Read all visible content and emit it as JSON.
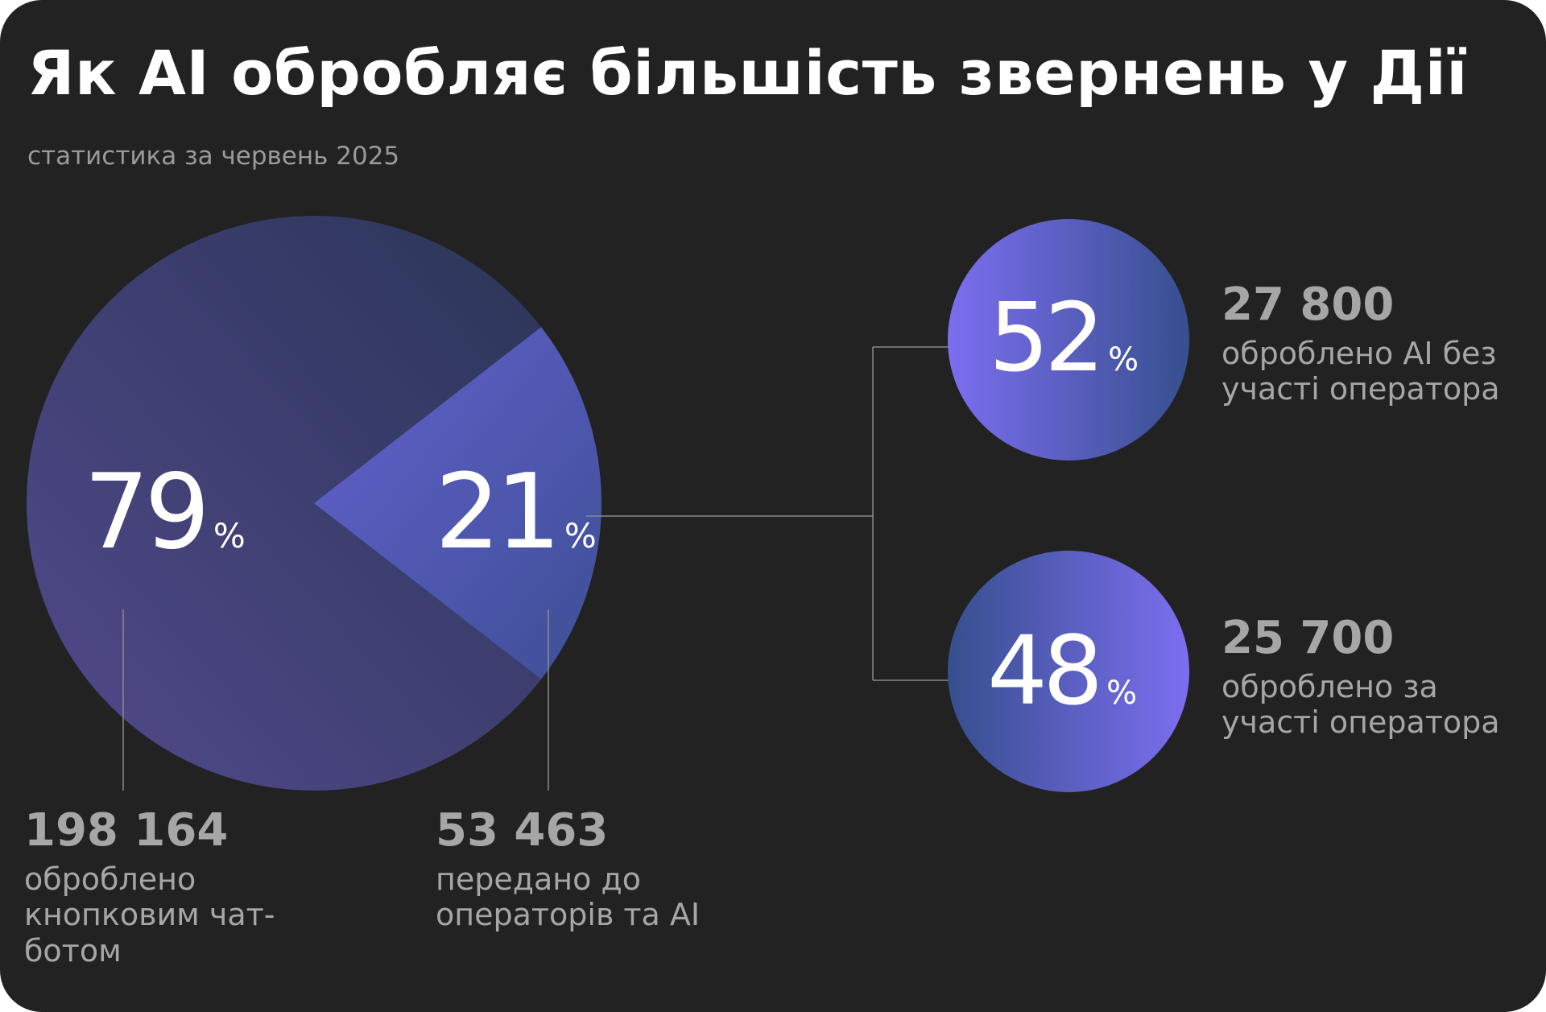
{
  "title": "Як AI обробляє більшість звернень у Дії",
  "subtitle": "статистика за червень 2025",
  "colors": {
    "background": "#222222",
    "pie_large_start": "#524a8c",
    "pie_large_end": "#2b3558",
    "pie_small_start": "#6461cf",
    "pie_small_end": "#3d4f94",
    "circle_light": "#7c6ef0",
    "circle_dark": "#364f8e",
    "connector": "#8a8a8a",
    "text_muted": "#a6a6a6"
  },
  "chart_data": [
    {
      "type": "pie",
      "slices": [
        {
          "label": "79",
          "unit": "%",
          "value": 79,
          "count": "198 164",
          "description": "оброблено кнопковим чат-ботом"
        },
        {
          "label": "21",
          "unit": "%",
          "value": 21,
          "count": "53 463",
          "description": "передано до операторів та AI"
        }
      ]
    },
    {
      "type": "bar",
      "parent": "21%",
      "slices": [
        {
          "label": "52",
          "unit": "%",
          "value": 52,
          "count": "27 800",
          "description": "оброблено AI без участі оператора"
        },
        {
          "label": "48",
          "unit": "%",
          "value": 48,
          "count": "25 700",
          "description": "оброблено за участі оператора"
        }
      ]
    }
  ]
}
